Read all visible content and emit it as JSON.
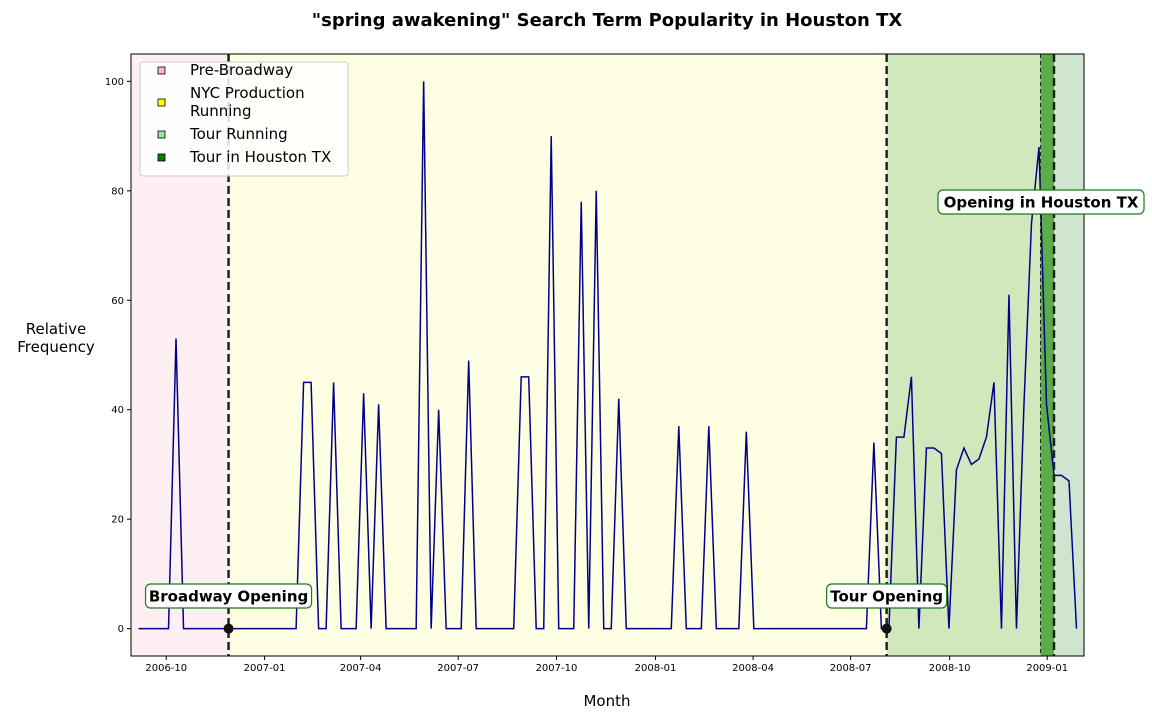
{
  "chart_data": {
    "type": "line",
    "title": "\"spring awakening\" Search Term Popularity in Houston TX",
    "xlabel": "Month",
    "ylabel_lines": [
      "Relative",
      "Frequency"
    ],
    "ylim": [
      -5,
      105
    ],
    "y_ticks": [
      0,
      20,
      40,
      60,
      80,
      100
    ],
    "x_range_week": [
      -1,
      126
    ],
    "x_ticks": [
      {
        "week": 3.7,
        "label": "2006-10"
      },
      {
        "week": 16.8,
        "label": "2007-01"
      },
      {
        "week": 29.6,
        "label": "2007-04"
      },
      {
        "week": 42.6,
        "label": "2007-07"
      },
      {
        "week": 55.7,
        "label": "2007-10"
      },
      {
        "week": 68.9,
        "label": "2008-01"
      },
      {
        "week": 81.9,
        "label": "2008-04"
      },
      {
        "week": 94.9,
        "label": "2008-07"
      },
      {
        "week": 108.1,
        "label": "2008-10"
      },
      {
        "week": 121.1,
        "label": "2009-01"
      }
    ],
    "series": [
      {
        "color": "#00008b",
        "x_start": "2006-09-24",
        "x_step": "1 week",
        "values": [
          0,
          0,
          0,
          0,
          0,
          53,
          0,
          0,
          0,
          0,
          0,
          0,
          0,
          0,
          0,
          0,
          0,
          0,
          0,
          0,
          0,
          0,
          45,
          45,
          0,
          0,
          45,
          0,
          0,
          0,
          43,
          0,
          41,
          0,
          0,
          0,
          0,
          0,
          100,
          0,
          40,
          0,
          0,
          0,
          49,
          0,
          0,
          0,
          0,
          0,
          0,
          46,
          46,
          0,
          0,
          90,
          0,
          0,
          0,
          78,
          0,
          80,
          0,
          0,
          42,
          0,
          0,
          0,
          0,
          0,
          0,
          0,
          37,
          0,
          0,
          0,
          37,
          0,
          0,
          0,
          0,
          36,
          0,
          0,
          0,
          0,
          0,
          0,
          0,
          0,
          0,
          0,
          0,
          0,
          0,
          0,
          0,
          0,
          34,
          0,
          0,
          35,
          35,
          46,
          0,
          33,
          33,
          32,
          0,
          29,
          33,
          30,
          31,
          35,
          45,
          0,
          61,
          0,
          41,
          74,
          88,
          41,
          28,
          28,
          27,
          0
        ]
      }
    ],
    "legend": {
      "placement": "upper left",
      "entries": [
        {
          "label_lines": [
            "Pre-Broadway"
          ],
          "color": "#ffb6c1"
        },
        {
          "label_lines": [
            "NYC Production",
            "Running"
          ],
          "color": "#ffff00"
        },
        {
          "label_lines": [
            "Tour Running"
          ],
          "color": "#90ee90"
        },
        {
          "label_lines": [
            "Tour in Houston TX"
          ],
          "color": "#008000"
        }
      ]
    },
    "regions": [
      {
        "name": "Pre-Broadway",
        "from_week": -1,
        "to_week": 12,
        "color": "#fdeff2"
      },
      {
        "name": "NYC Production Running",
        "from_week": 12,
        "to_week": 99.7,
        "color": "#fefee2"
      },
      {
        "name": "Tour Running",
        "from_week": 99.7,
        "to_week": 126,
        "color": "#d2e8bc"
      },
      {
        "name": "Tour in Houston TX",
        "from_week": 120.2,
        "to_week": 122,
        "color": "#5aad48"
      }
    ],
    "annotations": [
      {
        "text": "Broadway Opening",
        "week": 12
      },
      {
        "text": "Tour Opening",
        "week": 99.7
      },
      {
        "text": "Opening in Houston TX",
        "week": 122
      }
    ],
    "grid": false
  }
}
